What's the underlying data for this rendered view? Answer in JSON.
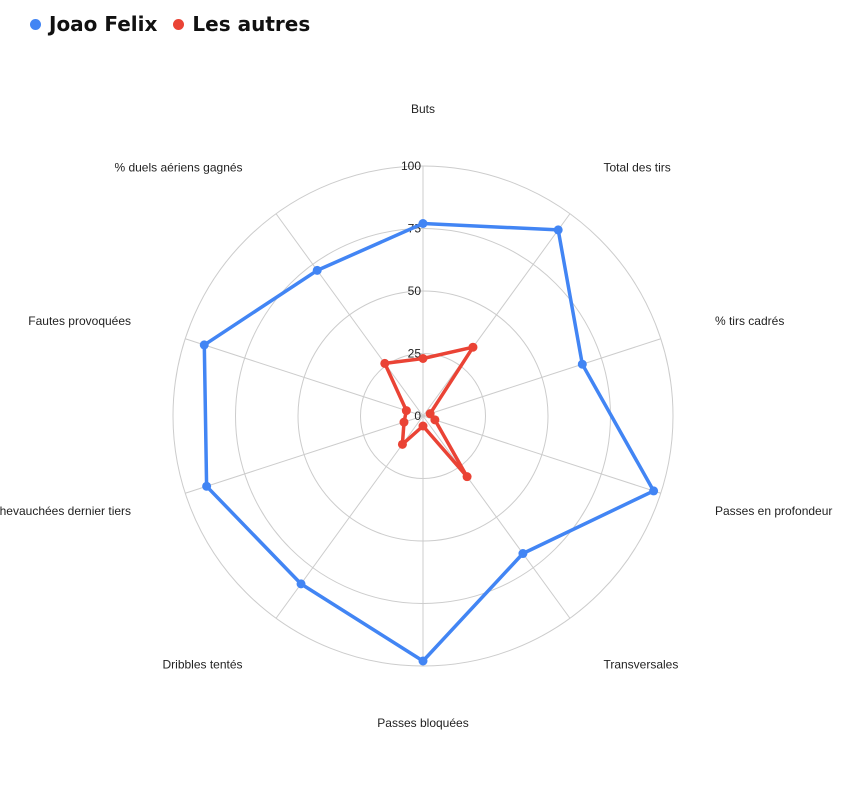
{
  "legend": {
    "items": [
      {
        "name": "Joao Felix",
        "color": "#4285f4"
      },
      {
        "name": "Les autres",
        "color": "#ea4335"
      }
    ]
  },
  "chart_data": {
    "type": "radar",
    "title": "",
    "categories": [
      "Buts",
      "Total des tirs",
      "% tirs cadrés",
      "Passes en profondeur",
      "Transversales",
      "Passes bloquées",
      "Dribbles tentés",
      "Chevauchées dernier tiers",
      "Fautes provoquées",
      "% duels aériens gagnés"
    ],
    "radial_ticks": [
      0,
      25,
      50,
      75,
      100
    ],
    "range": [
      0,
      100
    ],
    "grid": true,
    "legend_position": "top-left",
    "series": [
      {
        "name": "Joao Felix",
        "color": "#4285f4",
        "values": [
          77,
          92,
          67,
          97,
          68,
          98,
          83,
          91,
          92,
          72
        ]
      },
      {
        "name": "Les autres",
        "color": "#ea4335",
        "values": [
          23,
          34,
          3,
          5,
          30,
          4,
          14,
          8,
          7,
          26
        ]
      }
    ]
  }
}
